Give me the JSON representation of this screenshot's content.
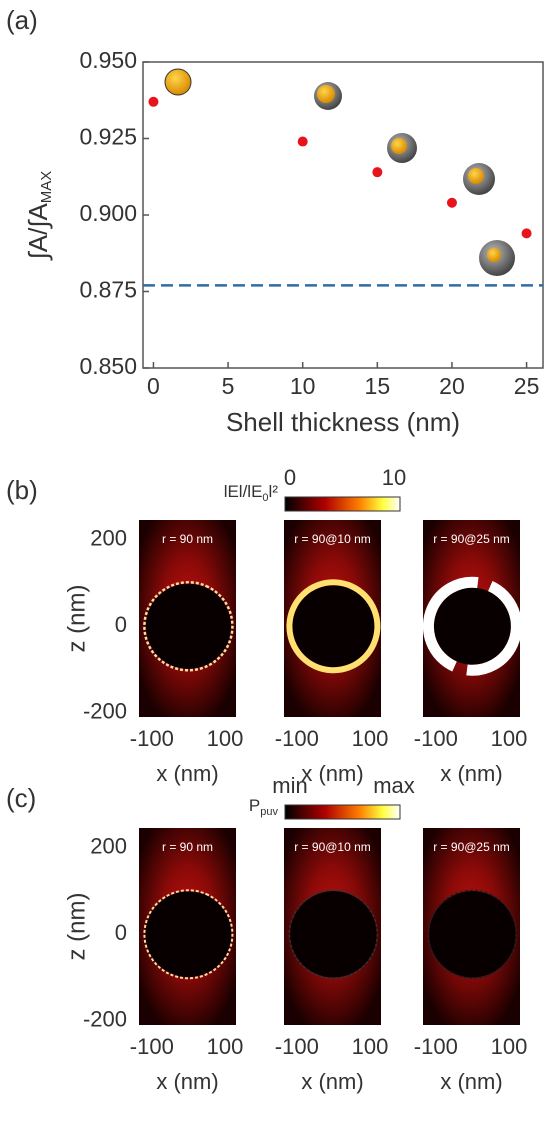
{
  "chart_data": [
    {
      "type": "scatter",
      "panel_label": "(a)",
      "x": [
        0,
        10,
        15,
        20,
        25
      ],
      "values": [
        0.937,
        0.924,
        0.914,
        0.904,
        0.894
      ],
      "color": "#e8141b",
      "reference_line": {
        "value": 0.877,
        "color": "#2e6da4",
        "style": "dashed"
      },
      "x_label": "Shell thickness (nm)",
      "y_label": [
        "∫A/∫A",
        "MAX"
      ],
      "xlim": [
        -0.7,
        26.1
      ],
      "ylim": [
        0.85,
        0.95
      ],
      "xticks": [
        0,
        5,
        10,
        15,
        20,
        25
      ],
      "yticks": [
        {
          "value": 0.85,
          "label": "0.850"
        },
        0.875,
        {
          "value": 0.9,
          "label": "0.900"
        },
        0.925,
        {
          "value": 0.95,
          "label": "0.950"
        }
      ]
    },
    {
      "type": "heatmap",
      "panel_label": "(b)",
      "title": "r = 90 nm",
      "colorbar_label": [
        "lEl/lE",
        "0",
        "l²"
      ],
      "colorbar_ticks": [
        0,
        10
      ],
      "x_label": "x (nm)",
      "y_label": "z (nm)",
      "xlim": [
        -135,
        130
      ],
      "ylim": [
        -210,
        246
      ],
      "xticks": [
        -100,
        100
      ],
      "yticks": [
        200,
        0,
        -200
      ]
    },
    {
      "type": "heatmap",
      "title": "r = 90@10 nm",
      "x_label": "x (nm)",
      "xlim": [
        -135,
        130
      ],
      "ylim": [
        -210,
        246
      ],
      "xticks": [
        -100,
        100
      ]
    },
    {
      "type": "heatmap",
      "title": "r = 90@25 nm",
      "x_label": "x (nm)",
      "xlim": [
        -135,
        130
      ],
      "ylim": [
        -210,
        246
      ],
      "xticks": [
        -100,
        100
      ]
    },
    {
      "type": "heatmap",
      "panel_label": "(c)",
      "title": "r = 90 nm",
      "colorbar_label": [
        "P",
        "puv"
      ],
      "colorbar_ticks": [
        "min",
        "max"
      ],
      "x_label": "x (nm)",
      "y_label": "z (nm)",
      "xlim": [
        -135,
        130
      ],
      "ylim": [
        -210,
        246
      ],
      "xticks": [
        -100,
        100
      ],
      "yticks": [
        200,
        0,
        -200
      ]
    },
    {
      "type": "heatmap",
      "title": "r = 90@10 nm",
      "x_label": "x (nm)",
      "xlim": [
        -135,
        130
      ],
      "ylim": [
        -210,
        246
      ],
      "xticks": [
        -100,
        100
      ]
    },
    {
      "type": "heatmap",
      "title": "r = 90@25 nm",
      "x_label": "x (nm)",
      "xlim": [
        -135,
        130
      ],
      "ylim": [
        -210,
        246
      ],
      "xticks": [
        -100,
        100
      ]
    }
  ]
}
